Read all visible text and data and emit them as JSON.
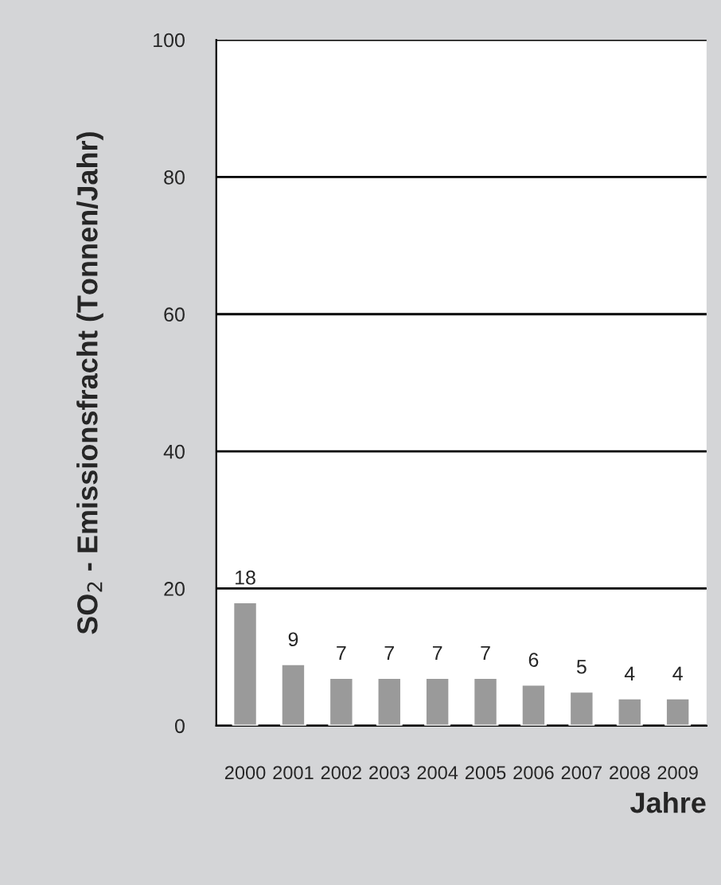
{
  "chart_data": {
    "type": "bar",
    "xlabel": "Jahre",
    "ylabel": "SO$_{2}$ - Emissionsfracht (Tonnen/Jahr)",
    "categories": [
      "2000",
      "2001",
      "2002",
      "2003",
      "2004",
      "2005",
      "2006",
      "2007",
      "2008",
      "2009"
    ],
    "values": [
      18,
      9,
      7,
      7,
      7,
      7,
      6,
      5,
      4,
      4
    ],
    "color": "#9a9a9a",
    "ylim": [
      0,
      100
    ],
    "yticks": [
      0,
      20,
      40,
      60,
      80,
      100
    ],
    "grid": "y",
    "data_labels": true
  }
}
